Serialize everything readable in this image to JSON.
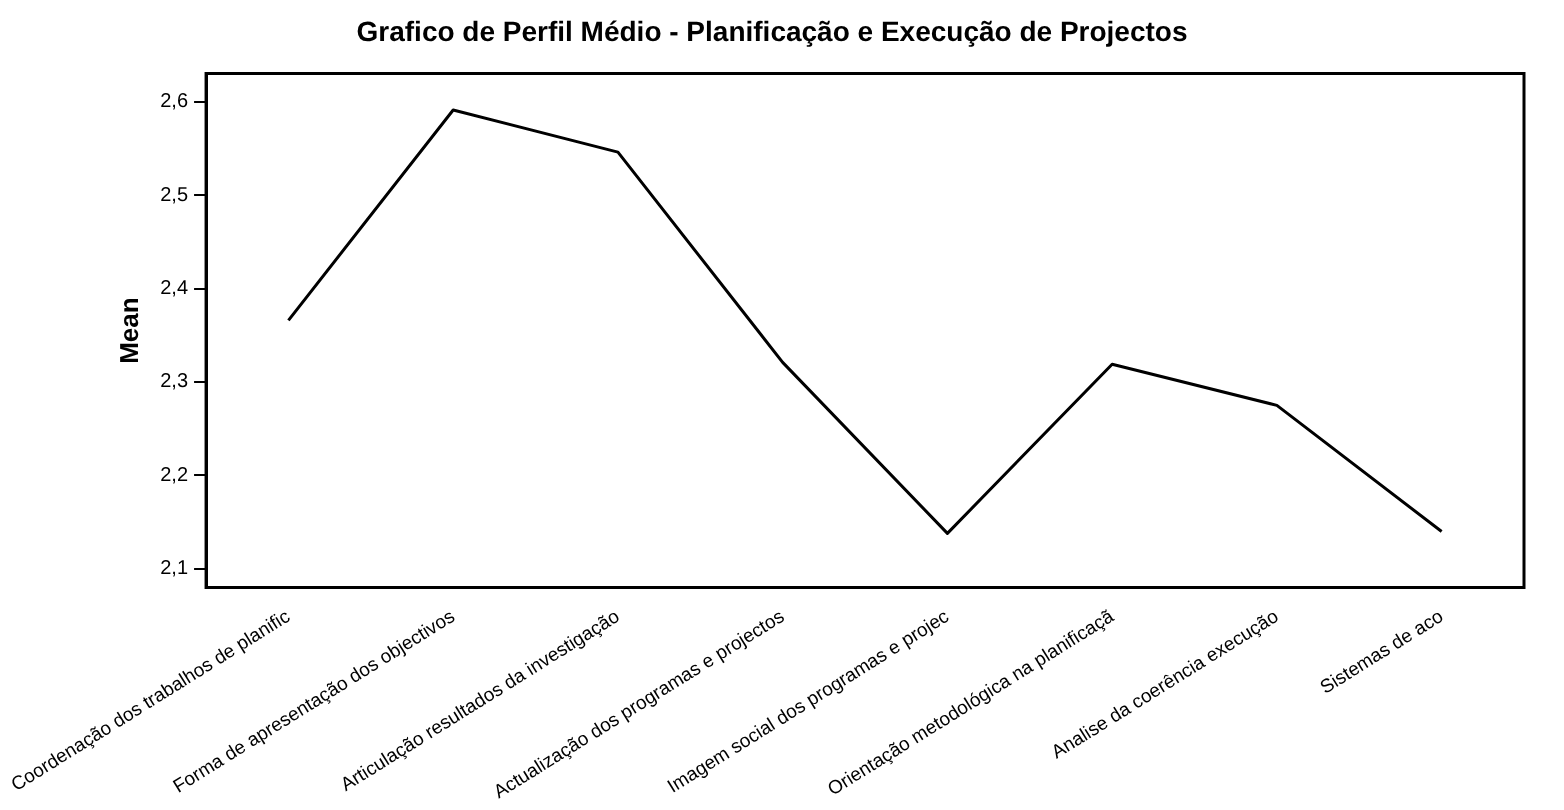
{
  "chart_data": {
    "type": "line",
    "title": "Grafico de Perfil Médio - Planificação e Execução de Projectos",
    "ylabel": "Mean",
    "categories": [
      "Coordenação dos trabalhos de planific",
      "Forma de apresentação dos objectivos",
      "Articulação resultados da investigação",
      "Actualização dos programas e projectos",
      "Imagem social dos programas e projec",
      "Orientação metodológica na planificaçã",
      "Analise da coerência execução",
      "Sistemas de aco"
    ],
    "series": [
      {
        "color": "#000000",
        "values": [
          2.366,
          2.591,
          2.546,
          2.321,
          2.138,
          2.319,
          2.275,
          2.14
        ]
      }
    ],
    "ylim": [
      2.08,
      2.63
    ],
    "yticks": [
      {
        "value": 2.1,
        "label": "2,1"
      },
      {
        "value": 2.2,
        "label": "2,2"
      },
      {
        "value": 2.3,
        "label": "2,3"
      },
      {
        "value": 2.4,
        "label": "2,4"
      },
      {
        "value": 2.5,
        "label": "2,5"
      },
      {
        "value": 2.6,
        "label": "2,6"
      }
    ],
    "grid": false,
    "legend": false,
    "marker": "none",
    "line_style": "solid"
  }
}
